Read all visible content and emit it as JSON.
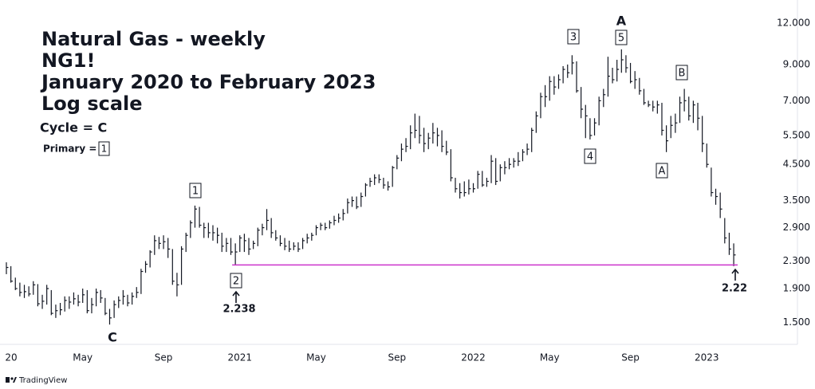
{
  "chart_data": {
    "type": "hlc",
    "title_lines": [
      "Natural Gas - weekly",
      "NG1!",
      "January 2020 to February 2023",
      "Log scale"
    ],
    "legend": {
      "cycle": "Cycle = C",
      "primary": "Primary =",
      "primary_box": "1"
    },
    "annotations": [
      "C",
      "1",
      "2",
      "3",
      "A",
      "5",
      "4",
      "A",
      "B"
    ],
    "price_labels": [
      "2.238",
      "2.22"
    ],
    "source": "TradingView",
    "color": "#131722",
    "line_color": "#cc33cc",
    "log_scale": true,
    "categories": [
      null,
      null,
      null,
      null,
      null,
      null,
      null,
      null,
      null,
      null,
      null,
      null,
      null,
      null,
      null,
      null,
      null,
      null,
      null,
      null,
      null,
      null,
      null,
      null,
      null,
      null,
      null,
      null,
      null,
      null,
      null,
      null,
      null,
      null,
      null,
      null,
      null,
      null,
      null,
      null,
      null,
      null,
      null,
      null,
      null,
      null,
      null,
      null,
      null,
      null,
      null,
      null,
      null,
      null,
      null,
      null,
      null,
      null,
      null,
      null,
      null,
      null,
      null,
      null,
      null,
      null,
      null,
      null,
      null,
      null,
      null,
      null,
      null,
      null,
      null,
      null,
      null,
      null,
      null,
      null,
      null,
      null,
      null,
      null,
      null,
      null,
      null,
      null,
      null,
      null,
      null,
      null,
      null,
      null,
      null,
      null,
      null,
      null,
      null,
      null,
      null,
      null,
      null,
      null,
      null,
      null,
      null,
      null,
      null,
      null,
      null,
      null,
      null,
      null,
      null,
      null,
      null,
      null,
      null,
      null,
      null,
      null,
      null,
      null,
      null,
      null,
      null,
      null,
      null,
      null,
      null,
      null,
      null,
      null,
      null,
      null,
      null,
      null,
      null,
      null,
      null,
      null,
      null,
      null,
      null,
      null,
      null,
      null,
      null,
      null,
      null,
      null,
      null,
      null,
      null,
      null,
      null,
      null,
      null,
      null,
      null,
      null,
      null
    ],
    "high": [
      2.28,
      2.22,
      2.05,
      1.98,
      1.95,
      1.93,
      2.0,
      1.96,
      1.82,
      1.95,
      1.88,
      1.7,
      1.72,
      1.8,
      1.8,
      1.85,
      1.82,
      1.9,
      1.88,
      1.78,
      1.9,
      1.88,
      1.78,
      1.65,
      1.75,
      1.8,
      1.88,
      1.82,
      1.85,
      1.92,
      2.18,
      2.3,
      2.48,
      2.75,
      2.72,
      2.75,
      2.7,
      2.5,
      2.12,
      2.55,
      2.8,
      3.05,
      3.38,
      3.35,
      3.0,
      3.0,
      2.95,
      2.9,
      2.8,
      2.7,
      2.7,
      2.6,
      2.75,
      2.78,
      2.7,
      2.65,
      2.9,
      2.98,
      3.3,
      3.1,
      2.85,
      2.75,
      2.7,
      2.65,
      2.62,
      2.62,
      2.7,
      2.78,
      2.8,
      2.95,
      3.0,
      3.0,
      3.05,
      3.15,
      3.2,
      3.3,
      3.55,
      3.6,
      3.6,
      3.7,
      3.95,
      4.1,
      4.2,
      4.2,
      4.1,
      4.0,
      4.45,
      4.8,
      5.2,
      5.4,
      5.9,
      6.4,
      6.3,
      5.8,
      5.6,
      6.0,
      5.8,
      5.7,
      5.3,
      5.0,
      4.1,
      3.95,
      4.0,
      4.05,
      3.95,
      4.3,
      4.3,
      4.1,
      4.8,
      4.7,
      4.5,
      4.6,
      4.7,
      4.7,
      4.9,
      5.0,
      5.2,
      5.8,
      6.5,
      7.4,
      7.8,
      8.3,
      8.3,
      8.4,
      8.9,
      9.0,
      9.6,
      9.2,
      7.7,
      6.8,
      6.2,
      6.2,
      7.2,
      7.6,
      9.5,
      8.8,
      9.3,
      10.0,
      9.6,
      9.1,
      8.6,
      8.2,
      7.6,
      7.0,
      7.0,
      7.0,
      6.9,
      5.9,
      6.3,
      6.4,
      7.2,
      7.6,
      7.2,
      7.0,
      6.9,
      6.3,
      5.2,
      4.4,
      3.8,
      3.7,
      3.1,
      2.8,
      2.6
    ],
    "low": [
      2.1,
      1.98,
      1.88,
      1.8,
      1.78,
      1.8,
      1.82,
      1.68,
      1.65,
      1.7,
      1.58,
      1.55,
      1.58,
      1.62,
      1.65,
      1.7,
      1.68,
      1.72,
      1.6,
      1.6,
      1.68,
      1.72,
      1.58,
      1.48,
      1.55,
      1.66,
      1.7,
      1.68,
      1.7,
      1.78,
      1.83,
      2.12,
      2.2,
      2.4,
      2.5,
      2.5,
      2.35,
      1.95,
      1.8,
      1.95,
      2.45,
      2.7,
      2.9,
      2.9,
      2.7,
      2.7,
      2.65,
      2.6,
      2.45,
      2.45,
      2.4,
      2.238,
      2.45,
      2.45,
      2.4,
      2.5,
      2.55,
      2.75,
      2.85,
      2.7,
      2.65,
      2.55,
      2.48,
      2.45,
      2.48,
      2.45,
      2.5,
      2.6,
      2.65,
      2.75,
      2.85,
      2.85,
      2.88,
      2.95,
      3.0,
      3.05,
      3.2,
      3.35,
      3.3,
      3.35,
      3.6,
      3.85,
      3.9,
      3.95,
      3.8,
      3.75,
      3.85,
      4.35,
      4.6,
      4.9,
      5.0,
      5.4,
      5.2,
      4.9,
      5.0,
      5.2,
      5.1,
      4.9,
      4.8,
      4.0,
      3.7,
      3.55,
      3.6,
      3.65,
      3.7,
      3.8,
      3.85,
      3.85,
      3.95,
      3.9,
      4.0,
      4.2,
      4.35,
      4.4,
      4.45,
      4.6,
      4.8,
      4.9,
      5.6,
      6.2,
      6.7,
      7.0,
      7.3,
      7.6,
      7.9,
      8.2,
      8.4,
      7.4,
      6.2,
      5.4,
      5.35,
      5.5,
      5.9,
      6.7,
      7.2,
      7.9,
      8.0,
      8.5,
      8.5,
      7.9,
      7.6,
      7.3,
      6.8,
      6.7,
      6.5,
      6.4,
      5.5,
      4.9,
      5.4,
      5.6,
      6.0,
      6.5,
      6.1,
      6.0,
      5.7,
      4.9,
      4.4,
      3.6,
      3.4,
      3.1,
      2.6,
      2.4,
      2.22
    ],
    "close": [
      2.2,
      2.0,
      1.9,
      1.85,
      1.86,
      1.83,
      1.95,
      1.71,
      1.74,
      1.9,
      1.6,
      1.63,
      1.64,
      1.75,
      1.73,
      1.77,
      1.73,
      1.82,
      1.63,
      1.7,
      1.85,
      1.78,
      1.6,
      1.55,
      1.7,
      1.75,
      1.8,
      1.72,
      1.8,
      1.85,
      2.14,
      2.25,
      2.45,
      2.65,
      2.6,
      2.63,
      2.5,
      2.0,
      1.95,
      2.5,
      2.75,
      3.0,
      3.3,
      2.95,
      2.9,
      2.8,
      2.8,
      2.75,
      2.55,
      2.6,
      2.45,
      2.45,
      2.7,
      2.65,
      2.5,
      2.6,
      2.85,
      2.9,
      3.05,
      2.8,
      2.7,
      2.6,
      2.55,
      2.5,
      2.55,
      2.5,
      2.65,
      2.7,
      2.75,
      2.9,
      2.95,
      2.9,
      3.0,
      3.05,
      3.1,
      3.2,
      3.45,
      3.5,
      3.35,
      3.6,
      3.9,
      4.0,
      4.1,
      4.05,
      3.9,
      3.85,
      4.4,
      4.7,
      5.0,
      5.1,
      5.6,
      5.7,
      5.5,
      5.2,
      5.4,
      5.6,
      5.5,
      5.1,
      4.9,
      4.1,
      3.8,
      3.7,
      3.7,
      3.8,
      3.8,
      4.2,
      3.9,
      4.0,
      4.6,
      4.0,
      4.4,
      4.4,
      4.5,
      4.6,
      4.6,
      4.9,
      5.0,
      5.7,
      6.3,
      7.2,
      7.2,
      8.0,
      7.7,
      8.1,
      8.7,
      8.5,
      9.1,
      7.5,
      6.6,
      6.3,
      5.5,
      6.0,
      7.0,
      7.3,
      8.3,
      8.1,
      8.7,
      9.3,
      8.8,
      8.0,
      8.1,
      7.5,
      6.9,
      6.8,
      6.7,
      6.8,
      5.7,
      5.3,
      5.9,
      6.0,
      6.9,
      7.0,
      6.3,
      6.8,
      6.2,
      5.2,
      4.5,
      3.7,
      3.6,
      3.3,
      2.7,
      2.5,
      2.4
    ],
    "ylim": [
      1.29,
      13.7
    ],
    "yticks": [
      {
        "value": 1.5,
        "label": "1.500"
      },
      {
        "value": 1.9,
        "label": "1.900"
      },
      {
        "value": 2.3,
        "label": "2.300"
      },
      {
        "value": 2.9,
        "label": "2.900"
      },
      {
        "value": 3.5,
        "label": "3.500"
      },
      {
        "value": 4.5,
        "label": "4.500"
      },
      {
        "value": 5.5,
        "label": "5.500"
      },
      {
        "value": 7,
        "label": "7.000"
      },
      {
        "value": 9,
        "label": "9.000"
      },
      {
        "value": 12,
        "label": "12.000"
      }
    ],
    "xticks": [
      {
        "value": 0,
        "label": "20"
      },
      {
        "value": 17,
        "label": "May"
      },
      {
        "value": 35,
        "label": "Sep"
      },
      {
        "value": 52,
        "label": "2021"
      },
      {
        "value": 69,
        "label": "May"
      },
      {
        "value": 87,
        "label": "Sep"
      },
      {
        "value": 104,
        "label": "2022"
      },
      {
        "value": 121,
        "label": "May"
      },
      {
        "value": 139,
        "label": "Sep"
      },
      {
        "value": 156,
        "label": "2023"
      }
    ]
  }
}
